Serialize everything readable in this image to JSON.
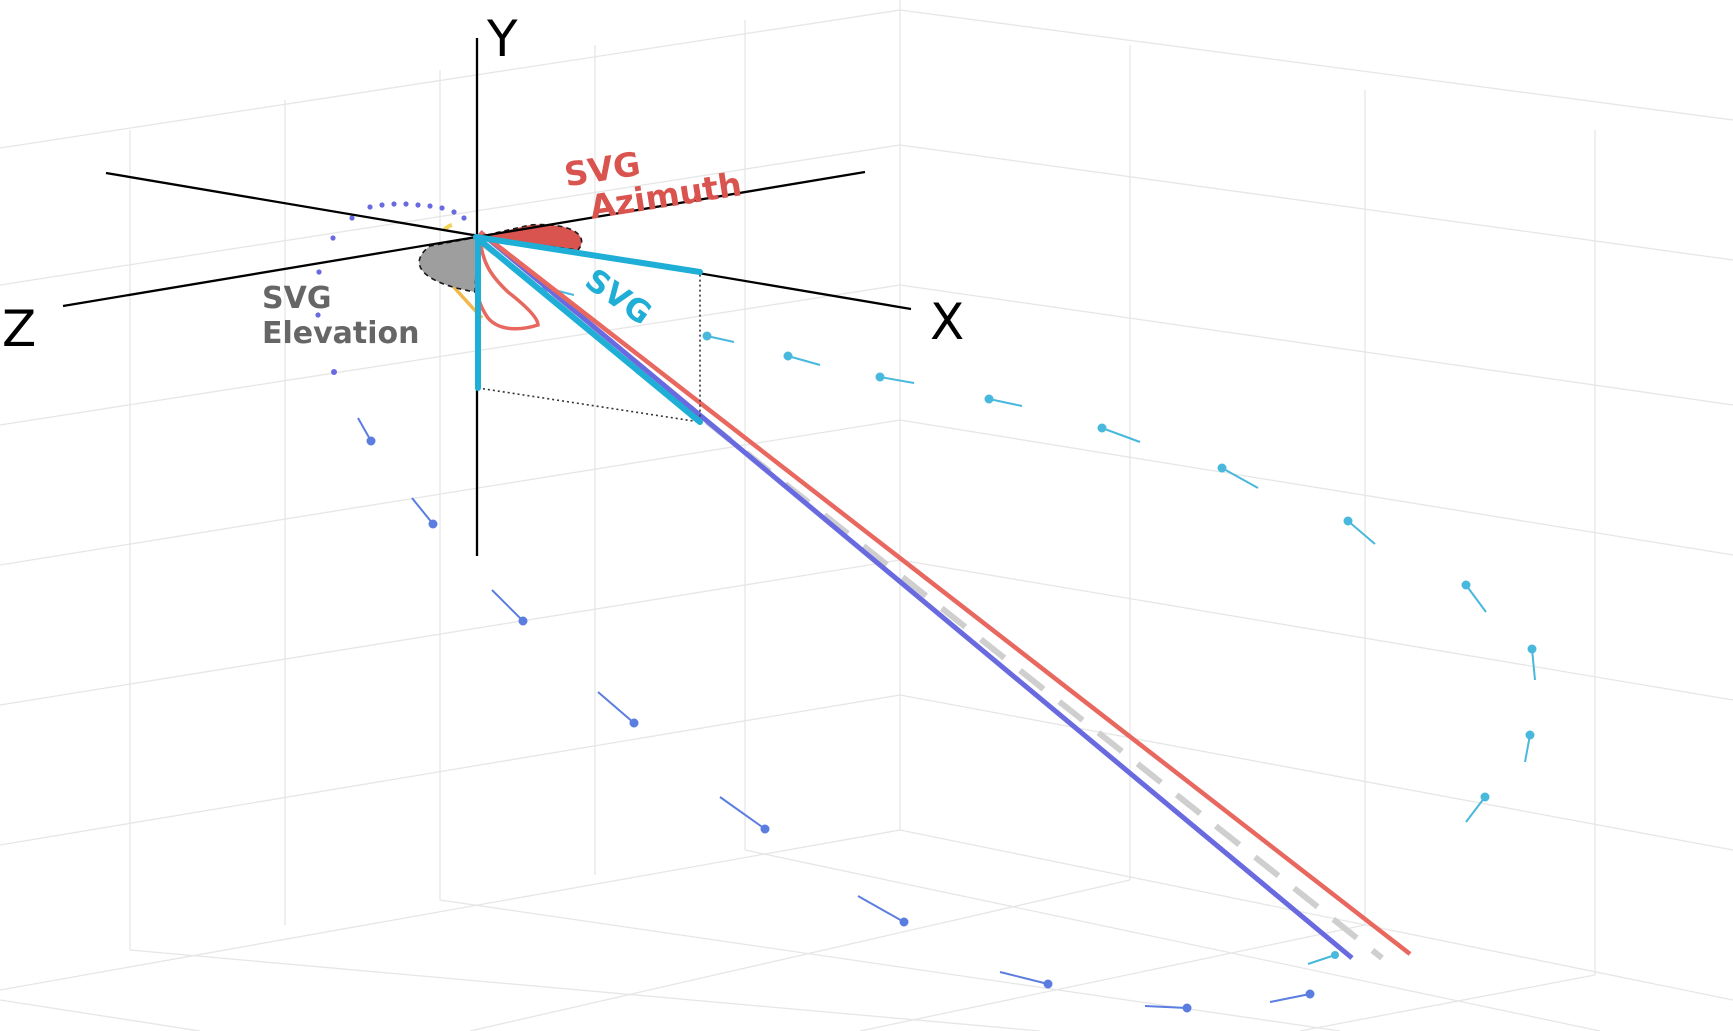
{
  "axes": {
    "x_label": "X",
    "y_label": "Y",
    "z_label": "Z"
  },
  "annotations": {
    "azimuth_line1": "SVG",
    "azimuth_line2": "Azimuth",
    "elevation_line1": "SVG",
    "elevation_line2": "Elevation",
    "svg_vector": "SVG"
  },
  "colors": {
    "svg_vector": "#1eaed6",
    "azimuth": "#d9534f",
    "elevation": "#7f7f7f",
    "red_loop": "#e8675f",
    "blue_loop": "#6a6ae0",
    "dashed_mean": "#cfcfcf",
    "grid": "#e6e6e6",
    "axis": "#000000"
  }
}
